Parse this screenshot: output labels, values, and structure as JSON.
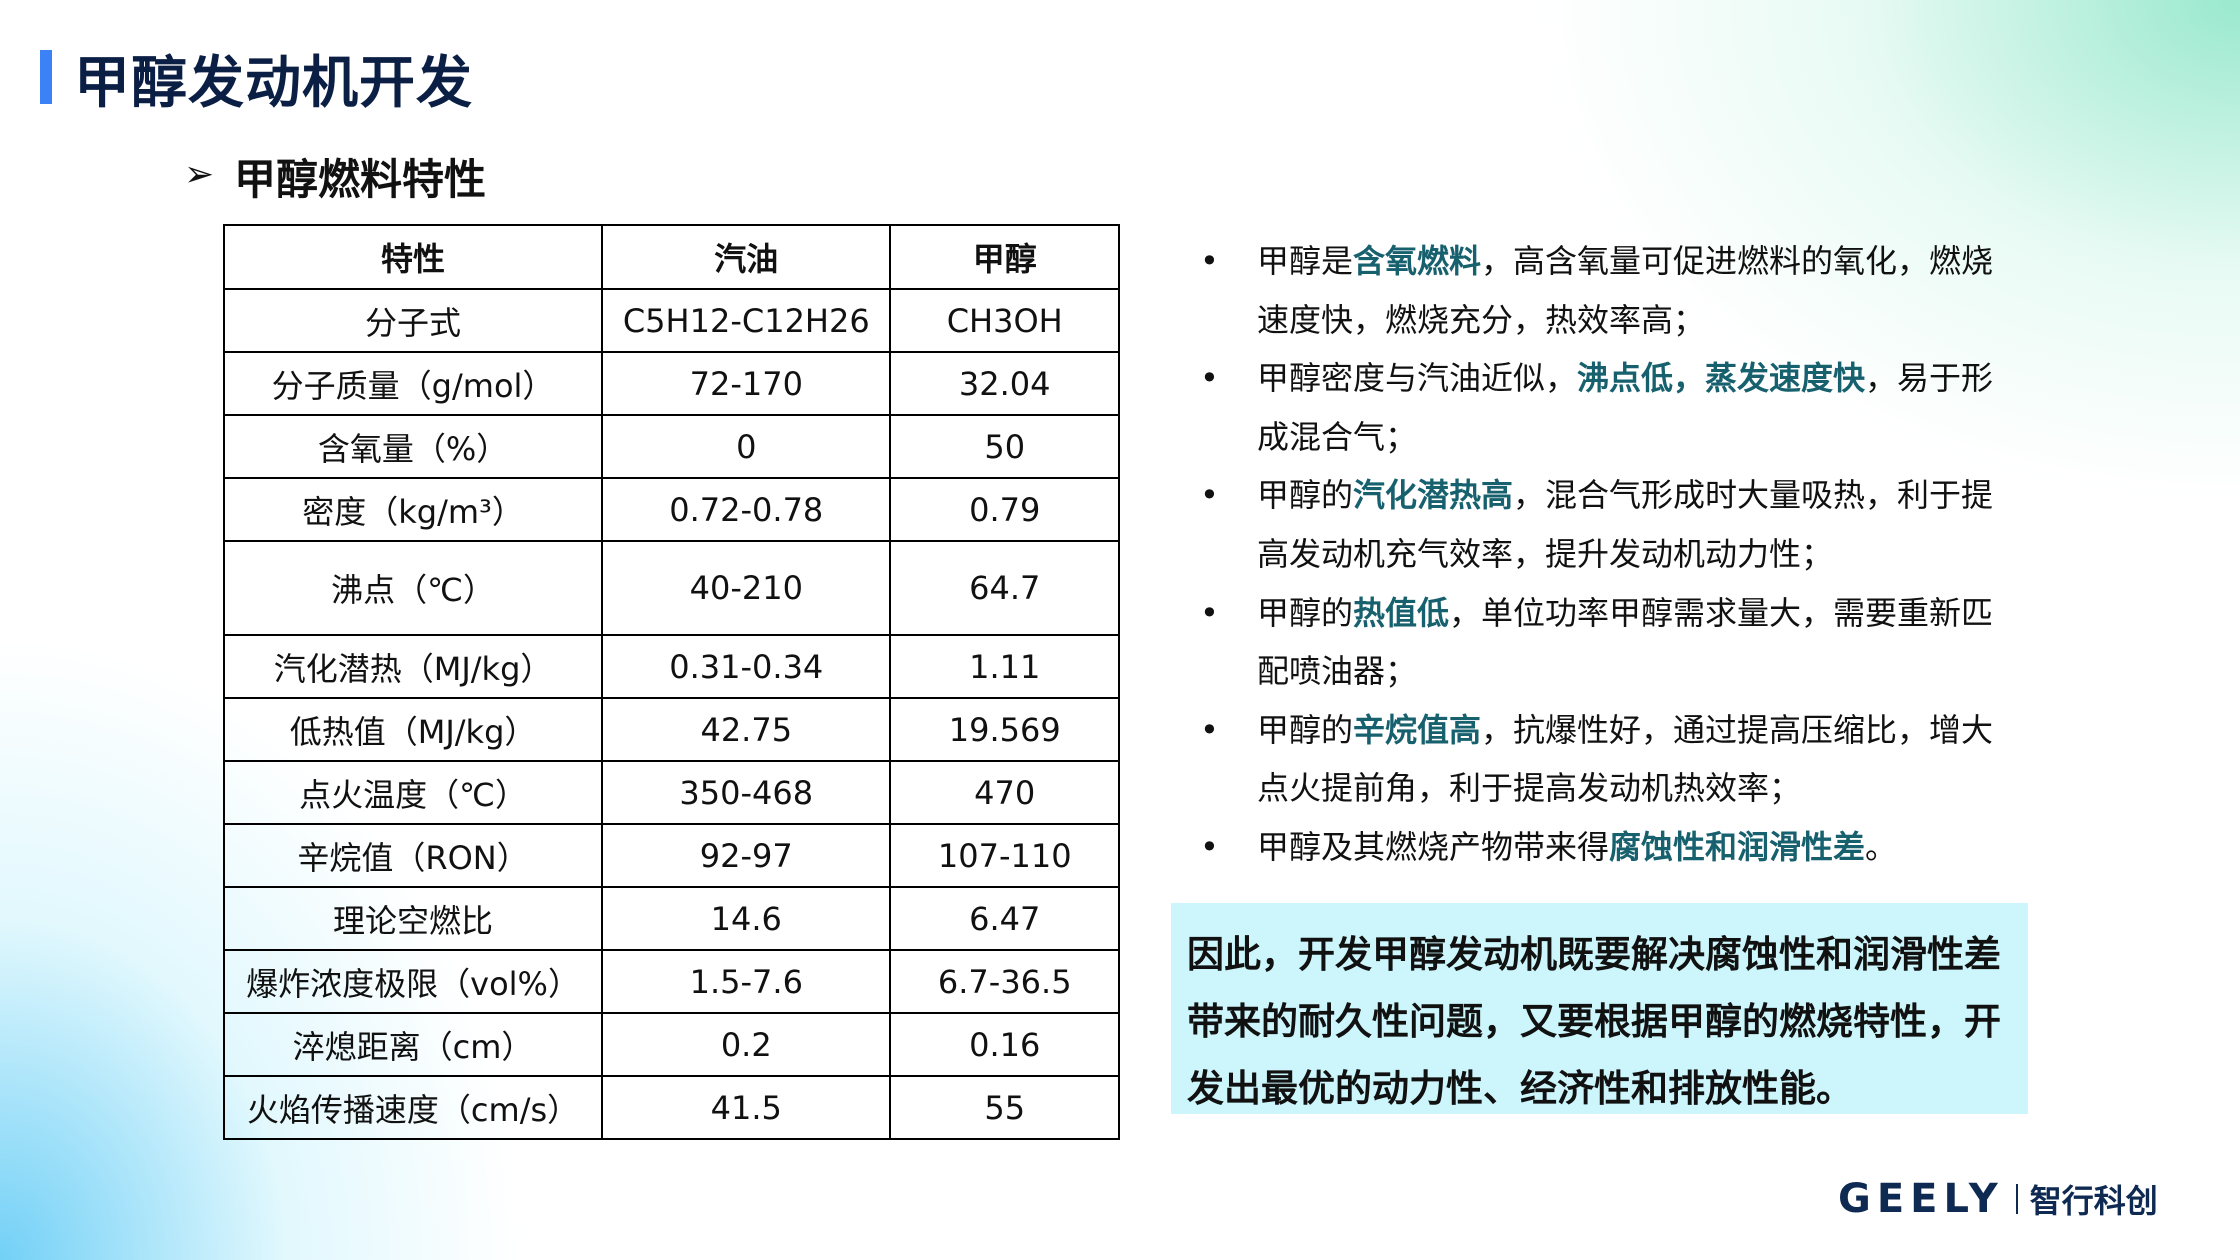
{
  "title": "甲醇发动机开发",
  "subtitle": "甲醇燃料特性",
  "table": {
    "headers": [
      "特性",
      "汽油",
      "甲醇"
    ],
    "rows": [
      [
        "分子式",
        "C5H12-C12H26",
        "CH3OH"
      ],
      [
        "分子质量（g/mol）",
        "72-170",
        "32.04"
      ],
      [
        "含氧量（%）",
        "0",
        "50"
      ],
      [
        "密度（kg/m³）",
        "0.72-0.78",
        "0.79"
      ],
      [
        "沸点（℃）",
        "40-210",
        "64.7"
      ],
      [
        "汽化潜热（MJ/kg）",
        "0.31-0.34",
        "1.11"
      ],
      [
        "低热值（MJ/kg）",
        "42.75",
        "19.569"
      ],
      [
        "点火温度（℃）",
        "350-468",
        "470"
      ],
      [
        "辛烷值（RON）",
        "92-97",
        "107-110"
      ],
      [
        "理论空燃比",
        "14.6",
        "6.47"
      ],
      [
        "爆炸浓度极限（vol%）",
        "1.5-7.6",
        "6.7-36.5"
      ],
      [
        "淬熄距离（cm）",
        "0.2",
        "0.16"
      ],
      [
        "火焰传播速度（cm/s）",
        "41.5",
        "55"
      ]
    ]
  },
  "bullets": [
    [
      {
        "t": "甲醇是"
      },
      {
        "t": "含氧燃料",
        "hl": true
      },
      {
        "t": "，高含氧量可促进燃料的氧化，燃烧速度快，燃烧充分，热效率高；"
      }
    ],
    [
      {
        "t": "甲醇密度与汽油近似，"
      },
      {
        "t": "沸点低，蒸发速度快",
        "hl": true
      },
      {
        "t": "，易于形成混合气；"
      }
    ],
    [
      {
        "t": "甲醇的"
      },
      {
        "t": "汽化潜热高",
        "hl": true
      },
      {
        "t": "，混合气形成时大量吸热，利于提高发动机充气效率，提升发动机动力性；"
      }
    ],
    [
      {
        "t": "甲醇的"
      },
      {
        "t": "热值低",
        "hl": true
      },
      {
        "t": "，单位功率甲醇需求量大，需要重新匹配喷油器；"
      }
    ],
    [
      {
        "t": "甲醇的"
      },
      {
        "t": "辛烷值高",
        "hl": true
      },
      {
        "t": "，抗爆性好，通过提高压缩比，增大点火提前角，利于提高发动机热效率；"
      }
    ],
    [
      {
        "t": "甲醇及其燃烧产物带来得"
      },
      {
        "t": "腐蚀性和润滑性差",
        "hl": true
      },
      {
        "t": "。"
      }
    ]
  ],
  "bullet_char": "•",
  "conclusion": "因此，开发甲醇发动机既要解决腐蚀性和润滑性差带来的耐久性问题，又要根据甲醇的燃烧特性，开发出最优的动力性、经济性和排放性能。",
  "logo": {
    "brand": "GEELY",
    "tagline": "智行科创"
  },
  "colors": {
    "accent": "#3b82f6",
    "highlight": "#17606e",
    "box": "#ccf6fb",
    "title": "#0b1f45"
  }
}
